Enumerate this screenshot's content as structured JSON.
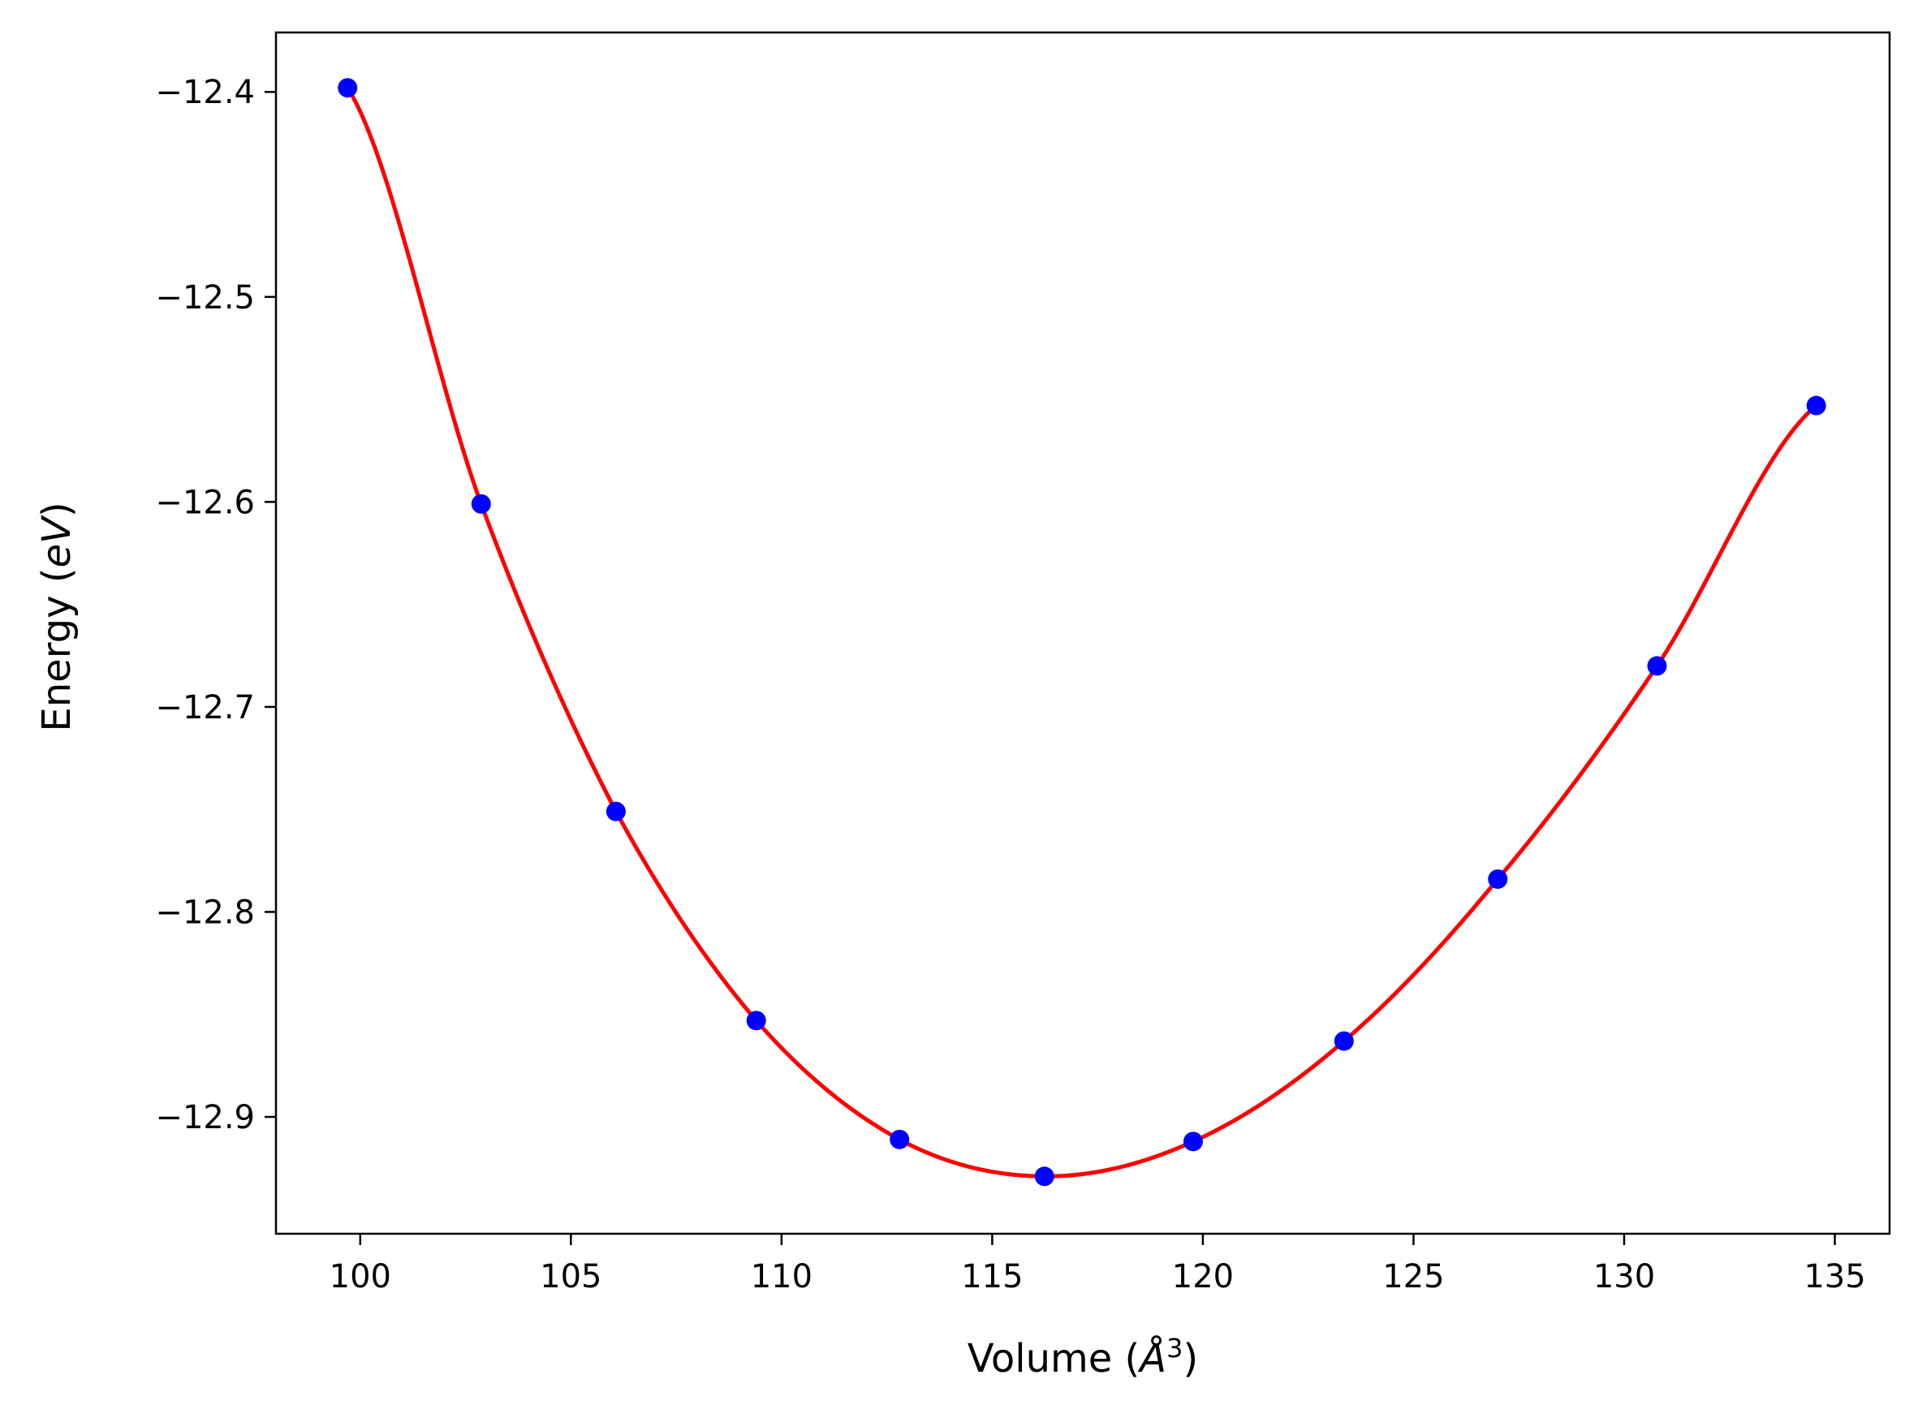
{
  "chart_data": {
    "type": "scatter",
    "title": "",
    "xlabel": "Volume",
    "xlabel_unit": "Å",
    "xlabel_exponent": "3",
    "ylabel": "Energy",
    "ylabel_unit": "eV",
    "xlim": [
      98.0,
      136.3
    ],
    "ylim": [
      -12.957,
      -12.371
    ],
    "xticks": [
      100,
      105,
      110,
      115,
      120,
      125,
      130,
      135
    ],
    "xtick_labels": [
      "100",
      "105",
      "110",
      "115",
      "120",
      "125",
      "130",
      "135"
    ],
    "yticks": [
      -12.9,
      -12.8,
      -12.7,
      -12.6,
      -12.5,
      -12.4
    ],
    "ytick_labels": [
      "−12.9",
      "−12.8",
      "−12.7",
      "−12.6",
      "−12.5",
      "−12.4"
    ],
    "grid": false,
    "series": [
      {
        "kind": "points",
        "color": "#0000ff",
        "x": [
          99.7,
          102.87,
          106.07,
          109.4,
          112.8,
          116.24,
          119.77,
          123.35,
          127.0,
          130.78,
          134.56
        ],
        "y": [
          -12.398,
          -12.601,
          -12.751,
          -12.853,
          -12.911,
          -12.929,
          -12.912,
          -12.863,
          -12.784,
          -12.68,
          -12.553
        ]
      },
      {
        "kind": "fit-curve",
        "color": "#ff0000",
        "x": [
          99.7,
          102.87,
          106.07,
          109.4,
          112.8,
          116.24,
          119.77,
          123.35,
          127.0,
          130.78,
          134.56
        ],
        "y": [
          -12.398,
          -12.601,
          -12.751,
          -12.853,
          -12.911,
          -12.929,
          -12.912,
          -12.863,
          -12.784,
          -12.68,
          -12.553
        ]
      }
    ]
  }
}
